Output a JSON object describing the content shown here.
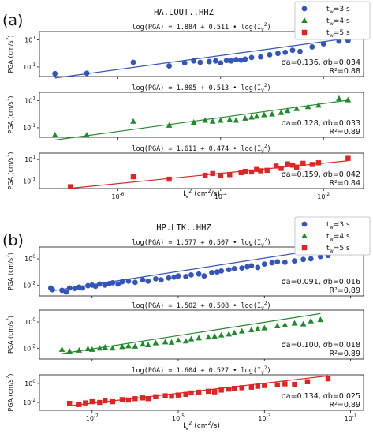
{
  "chart_data": [
    {
      "panel_label": "(a)",
      "station": "HA.LOUT..HHZ",
      "legend": [
        {
          "key": "tw3",
          "text": "t_w=3 s",
          "marker": "circle",
          "color": "#3355bb"
        },
        {
          "key": "tw4",
          "text": "t_w=4 s",
          "marker": "triangle",
          "color": "#1e8a2a"
        },
        {
          "key": "tw5",
          "text": "t_w=5 s",
          "marker": "square",
          "color": "#e02424"
        }
      ],
      "xlabel": "I_V^2 (cm^2/s)",
      "ylabel": "PGA (cm/s^2)",
      "xscale": "log",
      "yscale": "log",
      "xlim": [
        3e-08,
        0.06
      ],
      "xticks": [
        {
          "v": 1e-06,
          "label": "10^-6"
        },
        {
          "v": 0.0001,
          "label": "10^-4"
        },
        {
          "v": 0.01,
          "label": "10^-2"
        }
      ],
      "subplots": [
        {
          "type": "scatter",
          "series_key": "tw3",
          "marker": "circle",
          "color": "#3355bb",
          "equation": "log(PGA) = 1.884 + 0.511 • log(I_V^2)",
          "sigma_text": "σa=0.136, σb=0.034",
          "r2_text": "R²=0.88",
          "fit": {
            "intercept": 1.884,
            "slope": 0.511
          },
          "ylim": [
            0.02,
            40
          ],
          "yticks": [
            {
              "v": 0.1,
              "label": "10^-1"
            },
            {
              "v": 10,
              "label": "10^1"
            }
          ],
          "points": [
            [
              6e-08,
              0.033
            ],
            [
              2.5e-07,
              0.035
            ],
            [
              2e-06,
              0.22
            ],
            [
              1e-05,
              0.12
            ],
            [
              2e-05,
              0.2
            ],
            [
              3e-05,
              0.28
            ],
            [
              4e-05,
              0.22
            ],
            [
              6e-05,
              0.25
            ],
            [
              8e-05,
              0.28
            ],
            [
              0.0001,
              0.2
            ],
            [
              0.00013,
              0.3
            ],
            [
              0.00016,
              0.28
            ],
            [
              0.0002,
              0.35
            ],
            [
              0.00025,
              0.32
            ],
            [
              0.0003,
              0.38
            ],
            [
              0.0004,
              0.5
            ],
            [
              0.0006,
              0.55
            ],
            [
              0.0009,
              0.8
            ],
            [
              0.0013,
              1.0
            ],
            [
              0.0018,
              1.2
            ],
            [
              0.0025,
              1.7
            ],
            [
              0.0035,
              1.4
            ],
            [
              0.006,
              3.0
            ],
            [
              0.01,
              5.0
            ],
            [
              0.02,
              8.0
            ],
            [
              0.03,
              9.0
            ]
          ]
        },
        {
          "type": "scatter",
          "series_key": "tw4",
          "marker": "triangle",
          "color": "#1e8a2a",
          "equation": "log(PGA) = 1.805 + 0.513 • log(I_V^2)",
          "sigma_text": "σa=0.128, σb=0.033",
          "r2_text": "R²=0.89",
          "fit": {
            "intercept": 1.805,
            "slope": 0.513
          },
          "ylim": [
            0.02,
            40
          ],
          "yticks": [
            {
              "v": 0.1,
              "label": "10^-1"
            },
            {
              "v": 10,
              "label": "10^1"
            }
          ],
          "points": [
            [
              6e-08,
              0.03
            ],
            [
              2.5e-07,
              0.03
            ],
            [
              2e-06,
              0.3
            ],
            [
              1e-05,
              0.15
            ],
            [
              3e-05,
              0.25
            ],
            [
              5e-05,
              0.35
            ],
            [
              7e-05,
              0.3
            ],
            [
              0.0001,
              0.35
            ],
            [
              0.00015,
              0.4
            ],
            [
              0.0002,
              0.35
            ],
            [
              0.0003,
              0.5
            ],
            [
              0.0004,
              0.6
            ],
            [
              0.0005,
              0.7
            ],
            [
              0.0007,
              0.9
            ],
            [
              0.001,
              1.0
            ],
            [
              0.0015,
              1.3
            ],
            [
              0.002,
              1.8
            ],
            [
              0.003,
              2.5
            ],
            [
              0.005,
              3.5
            ],
            [
              0.008,
              4.5
            ],
            [
              0.02,
              14
            ],
            [
              0.03,
              11
            ]
          ]
        },
        {
          "type": "scatter",
          "series_key": "tw5",
          "marker": "square",
          "color": "#e02424",
          "equation": "log(PGA) = 1.611 + 0.474 • log(I_V^2)",
          "sigma_text": "σa=0.159, σb=0.042",
          "r2_text": "R²=0.84",
          "fit": {
            "intercept": 1.611,
            "slope": 0.474
          },
          "ylim": [
            0.02,
            40
          ],
          "yticks": [
            {
              "v": 0.1,
              "label": "10^-1"
            },
            {
              "v": 10,
              "label": "10^1"
            }
          ],
          "points": [
            [
              1.2e-07,
              0.03
            ],
            [
              2e-06,
              0.25
            ],
            [
              1e-05,
              0.15
            ],
            [
              5e-05,
              0.35
            ],
            [
              7e-05,
              0.5
            ],
            [
              0.0001,
              0.35
            ],
            [
              0.00015,
              0.4
            ],
            [
              0.00025,
              0.6
            ],
            [
              0.0003,
              0.8
            ],
            [
              0.0004,
              0.7
            ],
            [
              0.0005,
              1.2
            ],
            [
              0.0006,
              0.9
            ],
            [
              0.0008,
              1.0
            ],
            [
              0.0012,
              2.5
            ],
            [
              0.0015,
              1.5
            ],
            [
              0.002,
              4.0
            ],
            [
              0.0025,
              3.0
            ],
            [
              0.003,
              2.0
            ],
            [
              0.004,
              4.5
            ],
            [
              0.006,
              3.5
            ],
            [
              0.008,
              5.0
            ],
            [
              0.03,
              13
            ]
          ]
        }
      ]
    },
    {
      "panel_label": "(b)",
      "station": "HP.LTK..HHZ",
      "legend": [
        {
          "key": "tw3",
          "text": "t_w=3 s",
          "marker": "circle",
          "color": "#3355bb"
        },
        {
          "key": "tw4",
          "text": "t_w=4 s",
          "marker": "triangle",
          "color": "#1e8a2a"
        },
        {
          "key": "tw5",
          "text": "t_w=5 s",
          "marker": "square",
          "color": "#e02424"
        }
      ],
      "xlabel": "I_V^2 (cm^2/s)",
      "ylabel": "PGA (cm/s^2)",
      "xscale": "log",
      "yscale": "log",
      "xlim": [
        6e-09,
        0.2
      ],
      "xticks": [
        {
          "v": 1e-07,
          "label": "10^-7"
        },
        {
          "v": 1e-05,
          "label": "10^-5"
        },
        {
          "v": 0.001,
          "label": "10^-3"
        },
        {
          "v": 0.1,
          "label": "10^-1"
        }
      ],
      "subplots": [
        {
          "type": "scatter",
          "series_key": "tw3",
          "marker": "circle",
          "color": "#3355bb",
          "equation": "log(PGA) = 1.577 + 0.507 • log(I_V^2)",
          "sigma_text": "σa=0.091, σb=0.016",
          "r2_text": "R²=0.89",
          "fit": {
            "intercept": 1.577,
            "slope": 0.507
          },
          "ylim": [
            0.0015,
            8
          ],
          "yticks": [
            {
              "v": 0.01,
              "label": "10^-2"
            },
            {
              "v": 1,
              "label": "10^0"
            }
          ],
          "points": [
            [
              1.1e-08,
              0.006
            ],
            [
              1.2e-08,
              0.0045
            ],
            [
              2e-08,
              0.004
            ],
            [
              2.5e-08,
              0.003
            ],
            [
              3e-08,
              0.006
            ],
            [
              4e-08,
              0.0055
            ],
            [
              5e-08,
              0.007
            ],
            [
              6e-08,
              0.006
            ],
            [
              8e-08,
              0.009
            ],
            [
              1e-07,
              0.01
            ],
            [
              1.2e-07,
              0.008
            ],
            [
              1.5e-07,
              0.012
            ],
            [
              2e-07,
              0.01
            ],
            [
              2.5e-07,
              0.013
            ],
            [
              3e-07,
              0.015
            ],
            [
              4e-07,
              0.012
            ],
            [
              5e-07,
              0.018
            ],
            [
              7e-07,
              0.02
            ],
            [
              1e-06,
              0.016
            ],
            [
              1.5e-06,
              0.025
            ],
            [
              2e-06,
              0.02
            ],
            [
              3e-06,
              0.03
            ],
            [
              4e-06,
              0.025
            ],
            [
              6e-06,
              0.035
            ],
            [
              8e-06,
              0.04
            ],
            [
              1e-05,
              0.05
            ],
            [
              1.5e-05,
              0.045
            ],
            [
              2e-05,
              0.06
            ],
            [
              3e-05,
              0.07
            ],
            [
              4e-05,
              0.05
            ],
            [
              6e-05,
              0.09
            ],
            [
              8e-05,
              0.1
            ],
            [
              0.0001,
              0.12
            ],
            [
              0.00015,
              0.15
            ],
            [
              0.0002,
              0.18
            ],
            [
              0.0003,
              0.2
            ],
            [
              0.0004,
              0.25
            ],
            [
              0.0005,
              0.3
            ],
            [
              0.0007,
              0.22
            ],
            [
              0.001,
              0.4
            ],
            [
              0.0015,
              0.5
            ],
            [
              0.002,
              0.6
            ],
            [
              0.003,
              0.55
            ],
            [
              0.005,
              0.7
            ],
            [
              0.008,
              0.9
            ],
            [
              0.012,
              1.0
            ],
            [
              0.02,
              1.5
            ],
            [
              0.03,
              1.8
            ],
            [
              0.1,
              3.0
            ]
          ]
        },
        {
          "type": "scatter",
          "series_key": "tw4",
          "marker": "triangle",
          "color": "#1e8a2a",
          "equation": "log(PGA) = 1.502 + 0.508 • log(I_V^2)",
          "sigma_text": "σa=0.100, σb=0.018",
          "r2_text": "R²=0.89",
          "fit": {
            "intercept": 1.502,
            "slope": 0.508
          },
          "ylim": [
            0.0015,
            8
          ],
          "yticks": [
            {
              "v": 0.01,
              "label": "10^-2"
            },
            {
              "v": 1,
              "label": "10^0"
            }
          ],
          "points": [
            [
              2e-08,
              0.008
            ],
            [
              3e-08,
              0.006
            ],
            [
              5e-08,
              0.007
            ],
            [
              8e-08,
              0.009
            ],
            [
              1e-07,
              0.008
            ],
            [
              1.5e-07,
              0.01
            ],
            [
              2e-07,
              0.012
            ],
            [
              3e-07,
              0.01
            ],
            [
              5e-07,
              0.013
            ],
            [
              7e-07,
              0.015
            ],
            [
              1e-06,
              0.014
            ],
            [
              1.5e-06,
              0.02
            ],
            [
              2e-06,
              0.018
            ],
            [
              3e-06,
              0.025
            ],
            [
              5e-06,
              0.03
            ],
            [
              7e-06,
              0.028
            ],
            [
              1e-05,
              0.04
            ],
            [
              1.5e-05,
              0.035
            ],
            [
              2e-05,
              0.05
            ],
            [
              3e-05,
              0.06
            ],
            [
              5e-05,
              0.07
            ],
            [
              7e-05,
              0.08
            ],
            [
              0.0001,
              0.1
            ],
            [
              0.00015,
              0.12
            ],
            [
              0.0002,
              0.15
            ],
            [
              0.0003,
              0.2
            ],
            [
              0.0005,
              0.25
            ],
            [
              0.0007,
              0.3
            ],
            [
              0.001,
              0.35
            ],
            [
              0.002,
              0.5
            ],
            [
              0.003,
              0.6
            ],
            [
              0.005,
              0.8
            ],
            [
              0.008,
              0.7
            ],
            [
              0.012,
              1.2
            ],
            [
              0.02,
              1.5
            ]
          ]
        },
        {
          "type": "scatter",
          "series_key": "tw5",
          "marker": "square",
          "color": "#e02424",
          "equation": "log(PGA) = 1.604 + 0.527 • log(I_V^2)",
          "sigma_text": "σa=0.134, σb=0.025",
          "r2_text": "R²=0.89",
          "fit": {
            "intercept": 1.604,
            "slope": 0.527
          },
          "ylim": [
            0.0015,
            8
          ],
          "yticks": [
            {
              "v": 0.01,
              "label": "10^-2"
            },
            {
              "v": 1,
              "label": "10^0"
            }
          ],
          "points": [
            [
              3e-08,
              0.008
            ],
            [
              5e-08,
              0.006
            ],
            [
              7e-08,
              0.009
            ],
            [
              1e-07,
              0.012
            ],
            [
              1.5e-07,
              0.01
            ],
            [
              2e-07,
              0.015
            ],
            [
              3e-07,
              0.012
            ],
            [
              5e-07,
              0.02
            ],
            [
              7e-07,
              0.018
            ],
            [
              1e-06,
              0.025
            ],
            [
              1.5e-06,
              0.03
            ],
            [
              2e-06,
              0.025
            ],
            [
              3e-06,
              0.04
            ],
            [
              5e-06,
              0.05
            ],
            [
              7e-06,
              0.045
            ],
            [
              1e-05,
              0.06
            ],
            [
              1.5e-05,
              0.07
            ],
            [
              2e-05,
              0.1
            ],
            [
              3e-05,
              0.12
            ],
            [
              5e-05,
              0.15
            ],
            [
              7e-05,
              0.13
            ],
            [
              0.0001,
              0.2
            ],
            [
              0.00015,
              0.25
            ],
            [
              0.0002,
              0.3
            ],
            [
              0.0003,
              0.35
            ],
            [
              0.0005,
              0.4
            ],
            [
              0.0007,
              0.5
            ],
            [
              0.001,
              0.6
            ],
            [
              0.002,
              0.7
            ],
            [
              0.003,
              0.9
            ],
            [
              0.005,
              0.8
            ],
            [
              0.01,
              1.5
            ],
            [
              0.03,
              3.0
            ]
          ]
        }
      ]
    }
  ]
}
